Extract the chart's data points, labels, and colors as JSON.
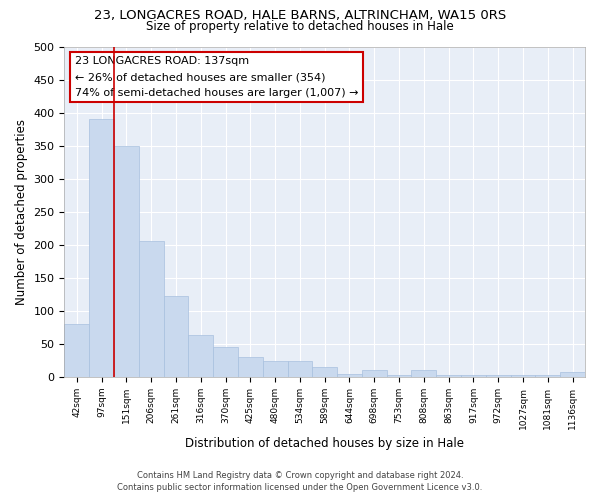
{
  "title1": "23, LONGACRES ROAD, HALE BARNS, ALTRINCHAM, WA15 0RS",
  "title2": "Size of property relative to detached houses in Hale",
  "xlabel": "Distribution of detached houses by size in Hale",
  "ylabel": "Number of detached properties",
  "bar_labels": [
    "42sqm",
    "97sqm",
    "151sqm",
    "206sqm",
    "261sqm",
    "316sqm",
    "370sqm",
    "425sqm",
    "480sqm",
    "534sqm",
    "589sqm",
    "644sqm",
    "698sqm",
    "753sqm",
    "808sqm",
    "863sqm",
    "917sqm",
    "972sqm",
    "1027sqm",
    "1081sqm",
    "1136sqm"
  ],
  "bar_values": [
    80,
    390,
    350,
    205,
    122,
    63,
    45,
    30,
    24,
    24,
    15,
    5,
    10,
    2,
    10,
    2,
    2,
    2,
    2,
    2,
    8
  ],
  "bar_color": "#c9d9ee",
  "bar_edge_color": "#a8c0de",
  "vline_x": 1.5,
  "vline_color": "#cc0000",
  "ylim": [
    0,
    500
  ],
  "yticks": [
    0,
    50,
    100,
    150,
    200,
    250,
    300,
    350,
    400,
    450,
    500
  ],
  "annotation_line1": "23 LONGACRES ROAD: 137sqm",
  "annotation_line2": "← 26% of detached houses are smaller (354)",
  "annotation_line3": "74% of semi-detached houses are larger (1,007) →",
  "footer1": "Contains HM Land Registry data © Crown copyright and database right 2024.",
  "footer2": "Contains public sector information licensed under the Open Government Licence v3.0.",
  "background_color": "#ffffff",
  "plot_bg_color": "#e8eef7",
  "grid_color": "#ffffff"
}
